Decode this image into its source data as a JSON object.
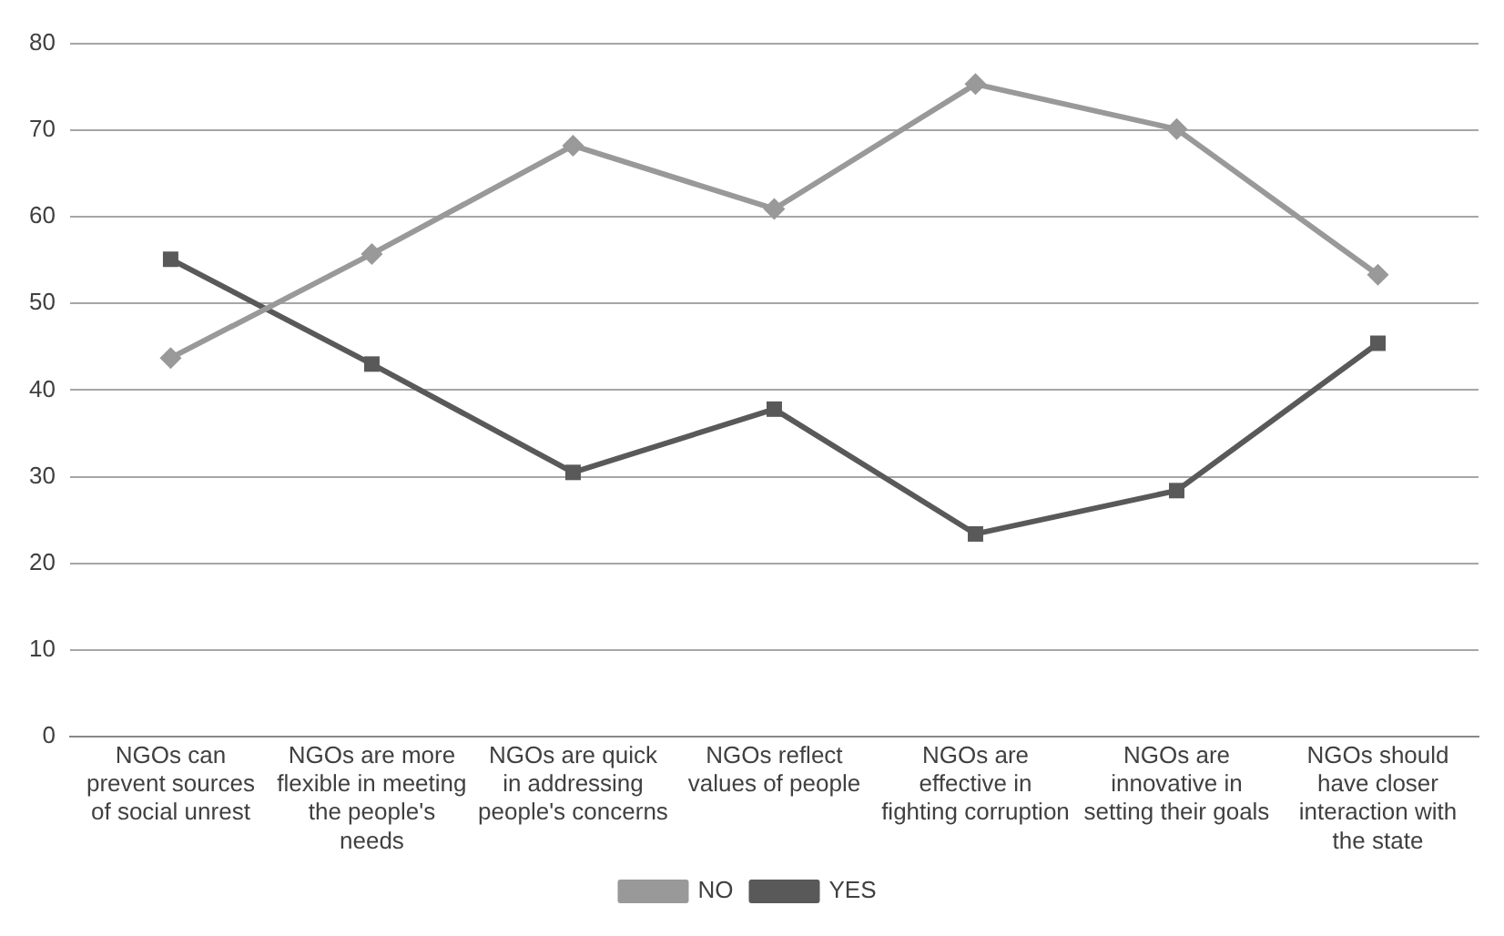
{
  "chart_data": {
    "type": "line",
    "categories": [
      "NGOs can prevent sources of social unrest",
      "NGOs are more flexible in meeting the people's needs",
      "NGOs are quick in addressing people's concerns",
      "NGOs reflect values of people",
      "NGOs are effective in fighting corruption",
      "NGOs are innovative in setting their goals",
      "NGOs should have closer interaction with the state"
    ],
    "series": [
      {
        "name": "NO",
        "color": "#999999",
        "marker": "diamond",
        "values": [
          43.7,
          55.7,
          68.2,
          60.9,
          75.3,
          70.1,
          53.3
        ]
      },
      {
        "name": "YES",
        "color": "#595959",
        "marker": "square",
        "values": [
          55.1,
          43,
          30.5,
          37.8,
          23.4,
          28.4,
          45.4
        ]
      }
    ],
    "ylim": [
      0,
      80
    ],
    "yticks": [
      0,
      10,
      20,
      30,
      40,
      50,
      60,
      70,
      80
    ],
    "grid": "y",
    "legend": "bottom",
    "line_style": "solid"
  }
}
